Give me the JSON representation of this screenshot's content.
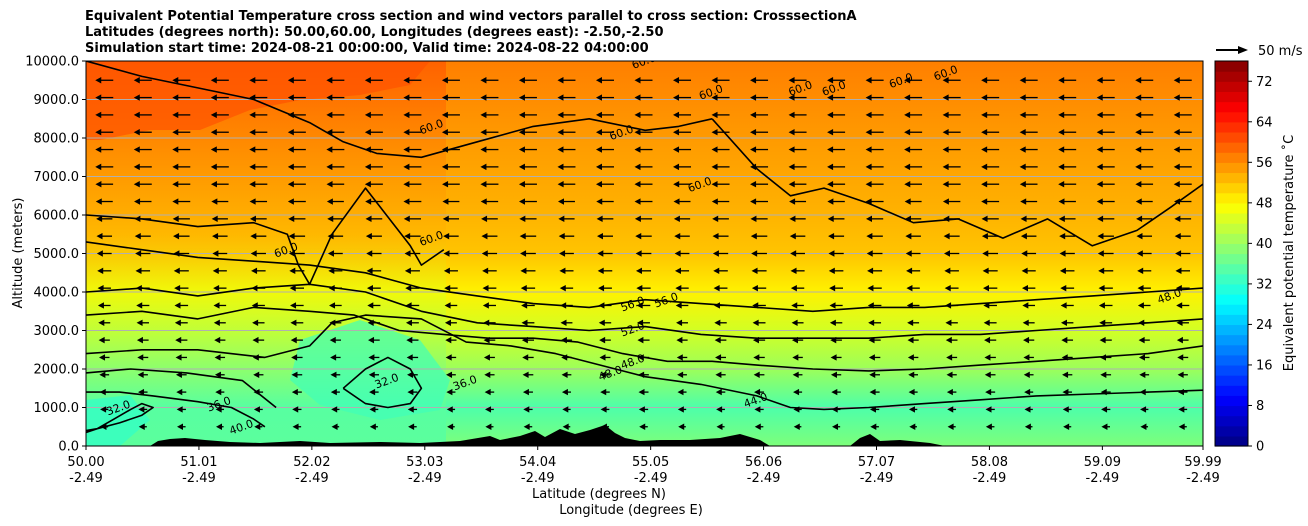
{
  "chart_data": {
    "type": "contour-cross-section",
    "title_lines": [
      "Equivalent Potential Temperature cross section and wind vectors parallel to cross section: CrosssectionA",
      "Latitudes (degrees north): 50.00,60.00, Longitudes (degrees east): -2.50,-2.50",
      "Simulation start time: 2024-08-21 00:00:00, Valid time: 2024-08-22 04:00:00"
    ],
    "xlabel": "Latitude (degrees N)",
    "xlabel2": "Longitude (degrees E)",
    "ylabel": "Altitude (meters)",
    "x_lat_ticks": [
      "50.00",
      "51.01",
      "52.02",
      "53.03",
      "54.04",
      "55.05",
      "56.06",
      "57.07",
      "58.08",
      "59.09",
      "59.99"
    ],
    "x_lon_ticks": [
      "-2.49",
      "-2.49",
      "-2.49",
      "-2.49",
      "-2.49",
      "-2.49",
      "-2.49",
      "-2.49",
      "-2.49",
      "-2.49",
      "-2.49"
    ],
    "xlim": [
      50.0,
      59.99
    ],
    "y_ticks": [
      "0.0",
      "1000.0",
      "2000.0",
      "3000.0",
      "4000.0",
      "5000.0",
      "6000.0",
      "7000.0",
      "8000.0",
      "9000.0",
      "10000.0"
    ],
    "ylim": [
      0,
      10000
    ],
    "grid": "horizontal",
    "colorbar": {
      "label": "Equivalent potential temperature ˚C",
      "ticks": [
        "0",
        "8",
        "16",
        "24",
        "32",
        "40",
        "48",
        "56",
        "64",
        "72"
      ],
      "range": [
        0,
        76
      ],
      "colormap": "jet"
    },
    "quiver_key": {
      "label": "50 m/s",
      "value": 50
    },
    "contour_levels": [
      32,
      36,
      40,
      44,
      48,
      52,
      56,
      60
    ],
    "contour_labels": [
      {
        "text": "32.0",
        "lat": 50.3,
        "alt": 900
      },
      {
        "text": "36.0",
        "lat": 51.2,
        "alt": 1000
      },
      {
        "text": "40.0",
        "lat": 51.4,
        "alt": 400
      },
      {
        "text": "32.0",
        "lat": 52.7,
        "alt": 1600
      },
      {
        "text": "36.0",
        "lat": 53.4,
        "alt": 1550
      },
      {
        "text": "60.0",
        "lat": 51.8,
        "alt": 5000
      },
      {
        "text": "60.0",
        "lat": 53.1,
        "alt": 5300
      },
      {
        "text": "60.0",
        "lat": 53.1,
        "alt": 8200
      },
      {
        "text": "60.0",
        "lat": 54.8,
        "alt": 8050
      },
      {
        "text": "60.0",
        "lat": 55.0,
        "alt": 9900
      },
      {
        "text": "60.0",
        "lat": 55.6,
        "alt": 9100
      },
      {
        "text": "60.0",
        "lat": 55.5,
        "alt": 6700
      },
      {
        "text": "60.0",
        "lat": 56.4,
        "alt": 9200
      },
      {
        "text": "60.0",
        "lat": 56.7,
        "alt": 9200
      },
      {
        "text": "60.0",
        "lat": 57.3,
        "alt": 9400
      },
      {
        "text": "60.0",
        "lat": 57.7,
        "alt": 9600
      },
      {
        "text": "56.0",
        "lat": 54.9,
        "alt": 3600
      },
      {
        "text": "56.0",
        "lat": 55.2,
        "alt": 3700
      },
      {
        "text": "52.0",
        "lat": 54.9,
        "alt": 2950
      },
      {
        "text": "48.0",
        "lat": 54.9,
        "alt": 2100
      },
      {
        "text": "48.0",
        "lat": 54.7,
        "alt": 1800
      },
      {
        "text": "44.0",
        "lat": 56.0,
        "alt": 1100
      },
      {
        "text": "48.0",
        "lat": 59.7,
        "alt": 3800
      }
    ],
    "series": [
      {
        "name": "theta_e contour 32 (west)",
        "level": 32,
        "lat": [
          50.0,
          50.1,
          50.25,
          50.4,
          50.5,
          50.6,
          50.5,
          50.3,
          50.1,
          50.0
        ],
        "alt": [
          350,
          450,
          700,
          950,
          1100,
          1000,
          800,
          600,
          450,
          400
        ]
      },
      {
        "name": "theta_e contour 36",
        "level": 36,
        "lat": [
          50.0,
          50.3,
          50.6,
          51.0,
          51.3,
          51.5,
          51.6
        ],
        "alt": [
          1400,
          1400,
          1300,
          1150,
          1000,
          700,
          500
        ]
      },
      {
        "name": "theta_e contour 40",
        "level": 40,
        "lat": [
          50.0,
          50.4,
          50.9,
          51.4,
          51.7
        ],
        "alt": [
          1900,
          2000,
          1900,
          1700,
          1000
        ]
      },
      {
        "name": "theta_e contour 32 (central)",
        "level": 32,
        "lat": [
          52.3,
          52.5,
          52.7,
          52.9,
          53.0,
          52.9,
          52.7,
          52.5,
          52.3
        ],
        "alt": [
          1500,
          2000,
          2300,
          2000,
          1500,
          1100,
          1000,
          1100,
          1500
        ]
      },
      {
        "name": "theta_e contour 44",
        "level": 44,
        "lat": [
          50.0,
          50.5,
          51.0,
          51.6,
          52.0,
          52.2,
          52.5,
          53.0,
          53.4,
          53.8,
          54.2,
          54.6,
          55.0,
          55.5,
          56.0,
          56.3,
          56.6,
          57.0,
          57.5,
          58.0,
          58.5,
          59.0,
          59.5,
          59.99
        ],
        "alt": [
          2400,
          2500,
          2500,
          2300,
          2600,
          3200,
          3400,
          3300,
          2700,
          2600,
          2400,
          2100,
          1800,
          1600,
          1300,
          1000,
          950,
          1000,
          1100,
          1200,
          1300,
          1350,
          1400,
          1450
        ]
      },
      {
        "name": "theta_e contour 48",
        "level": 48,
        "lat": [
          50.0,
          50.5,
          51.0,
          51.5,
          52.0,
          52.4,
          52.8,
          53.2,
          53.6,
          54.0,
          54.4,
          54.8,
          55.2,
          55.6,
          56.0,
          56.5,
          57.0,
          57.5,
          58.0,
          58.5,
          59.0,
          59.5,
          59.99
        ],
        "alt": [
          3400,
          3500,
          3300,
          3600,
          3500,
          3400,
          3000,
          2900,
          2800,
          2800,
          2700,
          2400,
          2200,
          2200,
          2100,
          2000,
          1950,
          2000,
          2100,
          2200,
          2300,
          2400,
          2600
        ]
      },
      {
        "name": "theta_e contour 52",
        "level": 52,
        "lat": [
          50.0,
          50.5,
          51.0,
          51.5,
          52.0,
          52.5,
          53.0,
          53.5,
          54.0,
          54.5,
          55.0,
          55.5,
          56.0,
          56.5,
          57.0,
          57.5,
          58.0,
          58.5,
          59.0,
          59.5,
          59.99
        ],
        "alt": [
          4000,
          4100,
          3900,
          4100,
          4200,
          4000,
          3500,
          3200,
          3100,
          3000,
          3100,
          2900,
          2800,
          2800,
          2800,
          2900,
          2900,
          3000,
          3100,
          3200,
          3300
        ]
      },
      {
        "name": "theta_e contour 56",
        "level": 56,
        "lat": [
          50.0,
          50.5,
          51.0,
          51.5,
          52.0,
          52.5,
          53.0,
          53.5,
          54.0,
          54.5,
          55.0,
          55.5,
          56.0,
          56.5,
          57.0,
          57.5,
          58.0,
          58.5,
          59.0,
          59.5,
          59.99
        ],
        "alt": [
          5300,
          5100,
          4900,
          4800,
          4700,
          4500,
          4100,
          3900,
          3700,
          3600,
          3800,
          3700,
          3600,
          3500,
          3600,
          3600,
          3700,
          3800,
          3900,
          4000,
          4100
        ]
      },
      {
        "name": "theta_e contour 60 (upper)",
        "level": 60,
        "lat": [
          50.0,
          50.5,
          51.0,
          51.5,
          52.0,
          52.3,
          52.6,
          53.0,
          53.5,
          54.0,
          54.5,
          55.0,
          55.3,
          55.6
        ],
        "alt": [
          10000,
          9600,
          9300,
          9000,
          8400,
          7900,
          7600,
          7500,
          7900,
          8300,
          8500,
          8200,
          8300,
          8500
        ]
      },
      {
        "name": "theta_e contour 60 (mid)",
        "level": 60,
        "lat": [
          50.0,
          50.5,
          51.0,
          51.5,
          51.8,
          51.9,
          52.0,
          52.2,
          52.5,
          52.9,
          53.0,
          53.2
        ],
        "alt": [
          6000,
          5900,
          5700,
          5800,
          5500,
          4700,
          4200,
          5500,
          6700,
          5200,
          4700,
          5100
        ]
      },
      {
        "name": "theta_e contour 60 (east)",
        "level": 60,
        "lat": [
          55.6,
          56.0,
          56.3,
          56.6,
          57.0,
          57.4,
          57.8,
          58.2,
          58.6,
          59.0,
          59.4,
          59.7,
          59.99
        ],
        "alt": [
          8500,
          7200,
          6500,
          6700,
          6300,
          5800,
          5900,
          5400,
          5900,
          5200,
          5600,
          6200,
          6800
        ]
      }
    ]
  }
}
